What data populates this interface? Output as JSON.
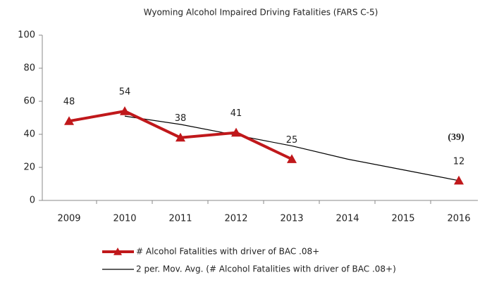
{
  "chart_data": {
    "type": "line",
    "title": "Wyoming Alcohol  Impaired Driving  Fatalities (FARS C-5)",
    "categories": [
      "2009",
      "2010",
      "2011",
      "2012",
      "2013",
      "2014",
      "2015",
      "2016"
    ],
    "series": [
      {
        "name": "# Alcohol Fatalities with driver of BAC .08+",
        "color": "#c0181b",
        "values": [
          48,
          54,
          38,
          41,
          25,
          null,
          null,
          12
        ],
        "marker": "triangle",
        "data_labels": true
      },
      {
        "name": "2 per. Mov. Avg. (# Alcohol Fatalities with driver of BAC .08+)",
        "color": "#000000",
        "values": [
          null,
          51,
          46,
          39.5,
          33,
          25,
          18.5,
          12
        ]
      }
    ],
    "annotations": [
      "(39)"
    ],
    "ylim": [
      0,
      100
    ],
    "yticks": [
      0,
      20,
      40,
      60,
      80,
      100
    ],
    "grid": false,
    "legend": "bottom"
  }
}
